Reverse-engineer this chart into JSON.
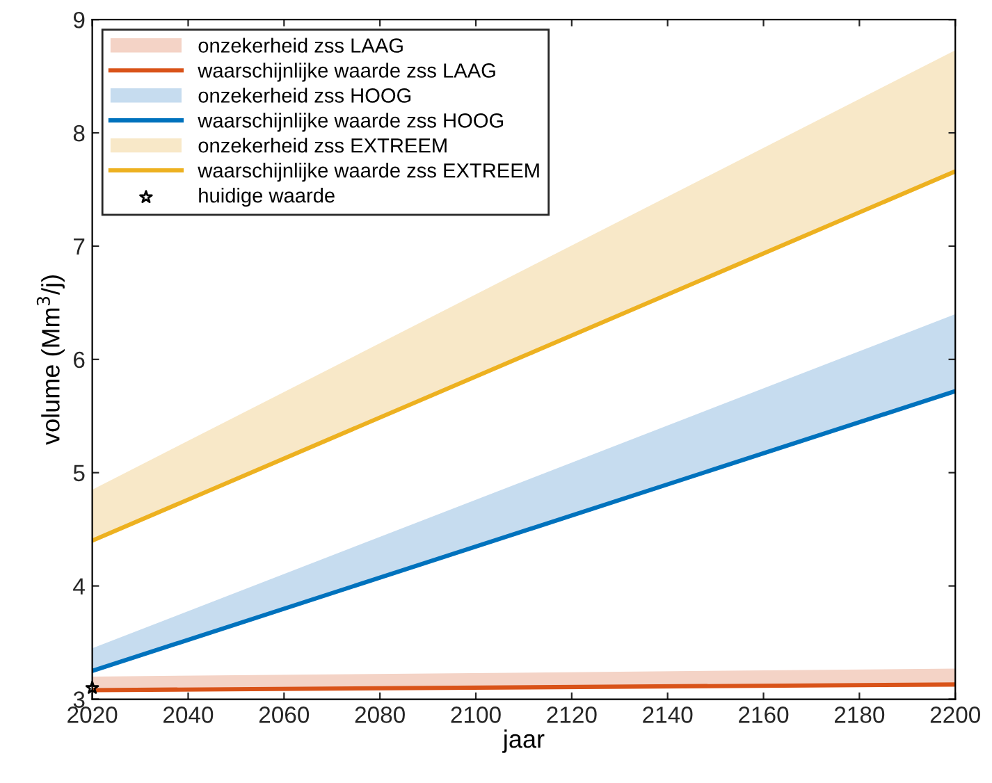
{
  "chart_data": {
    "type": "line",
    "xlabel": "jaar",
    "ylabel": "volume (Mm$^{3}$/j)",
    "x": [
      2020,
      2200
    ],
    "xlim": [
      2020,
      2200
    ],
    "ylim": [
      3,
      9
    ],
    "xticks": [
      2020,
      2040,
      2060,
      2080,
      2100,
      2120,
      2140,
      2160,
      2180,
      2200
    ],
    "yticks": [
      3,
      4,
      5,
      6,
      7,
      8,
      9
    ],
    "grid": false,
    "legend": "top left",
    "series": [
      {
        "name": "onzekerheid zss LAAG",
        "type": "area",
        "color": "#f4d3c6",
        "values": [
          3.2,
          3.27
        ]
      },
      {
        "name": "waarschijnlijke waarde zss LAAG",
        "color": "#d95319",
        "values": [
          3.08,
          3.13
        ]
      },
      {
        "name": "onzekerheid zss HOOG",
        "type": "area",
        "color": "#c6dcef",
        "values": [
          3.45,
          6.4
        ]
      },
      {
        "name": "waarschijnlijke waarde zss HOOG",
        "color": "#0072bd",
        "values": [
          3.25,
          5.72
        ]
      },
      {
        "name": "onzekerheid zss EXTREEM",
        "type": "area",
        "color": "#f8e8c8",
        "values": [
          4.85,
          8.73
        ]
      },
      {
        "name": "waarschijnlijke waarde zss EXTREEM",
        "color": "#edb120",
        "values": [
          4.4,
          7.66
        ]
      },
      {
        "name": "huidige waarde",
        "type": "scatter",
        "marker": "star",
        "color": "#000000",
        "x": [
          2020
        ],
        "values": [
          3.1
        ]
      }
    ]
  }
}
